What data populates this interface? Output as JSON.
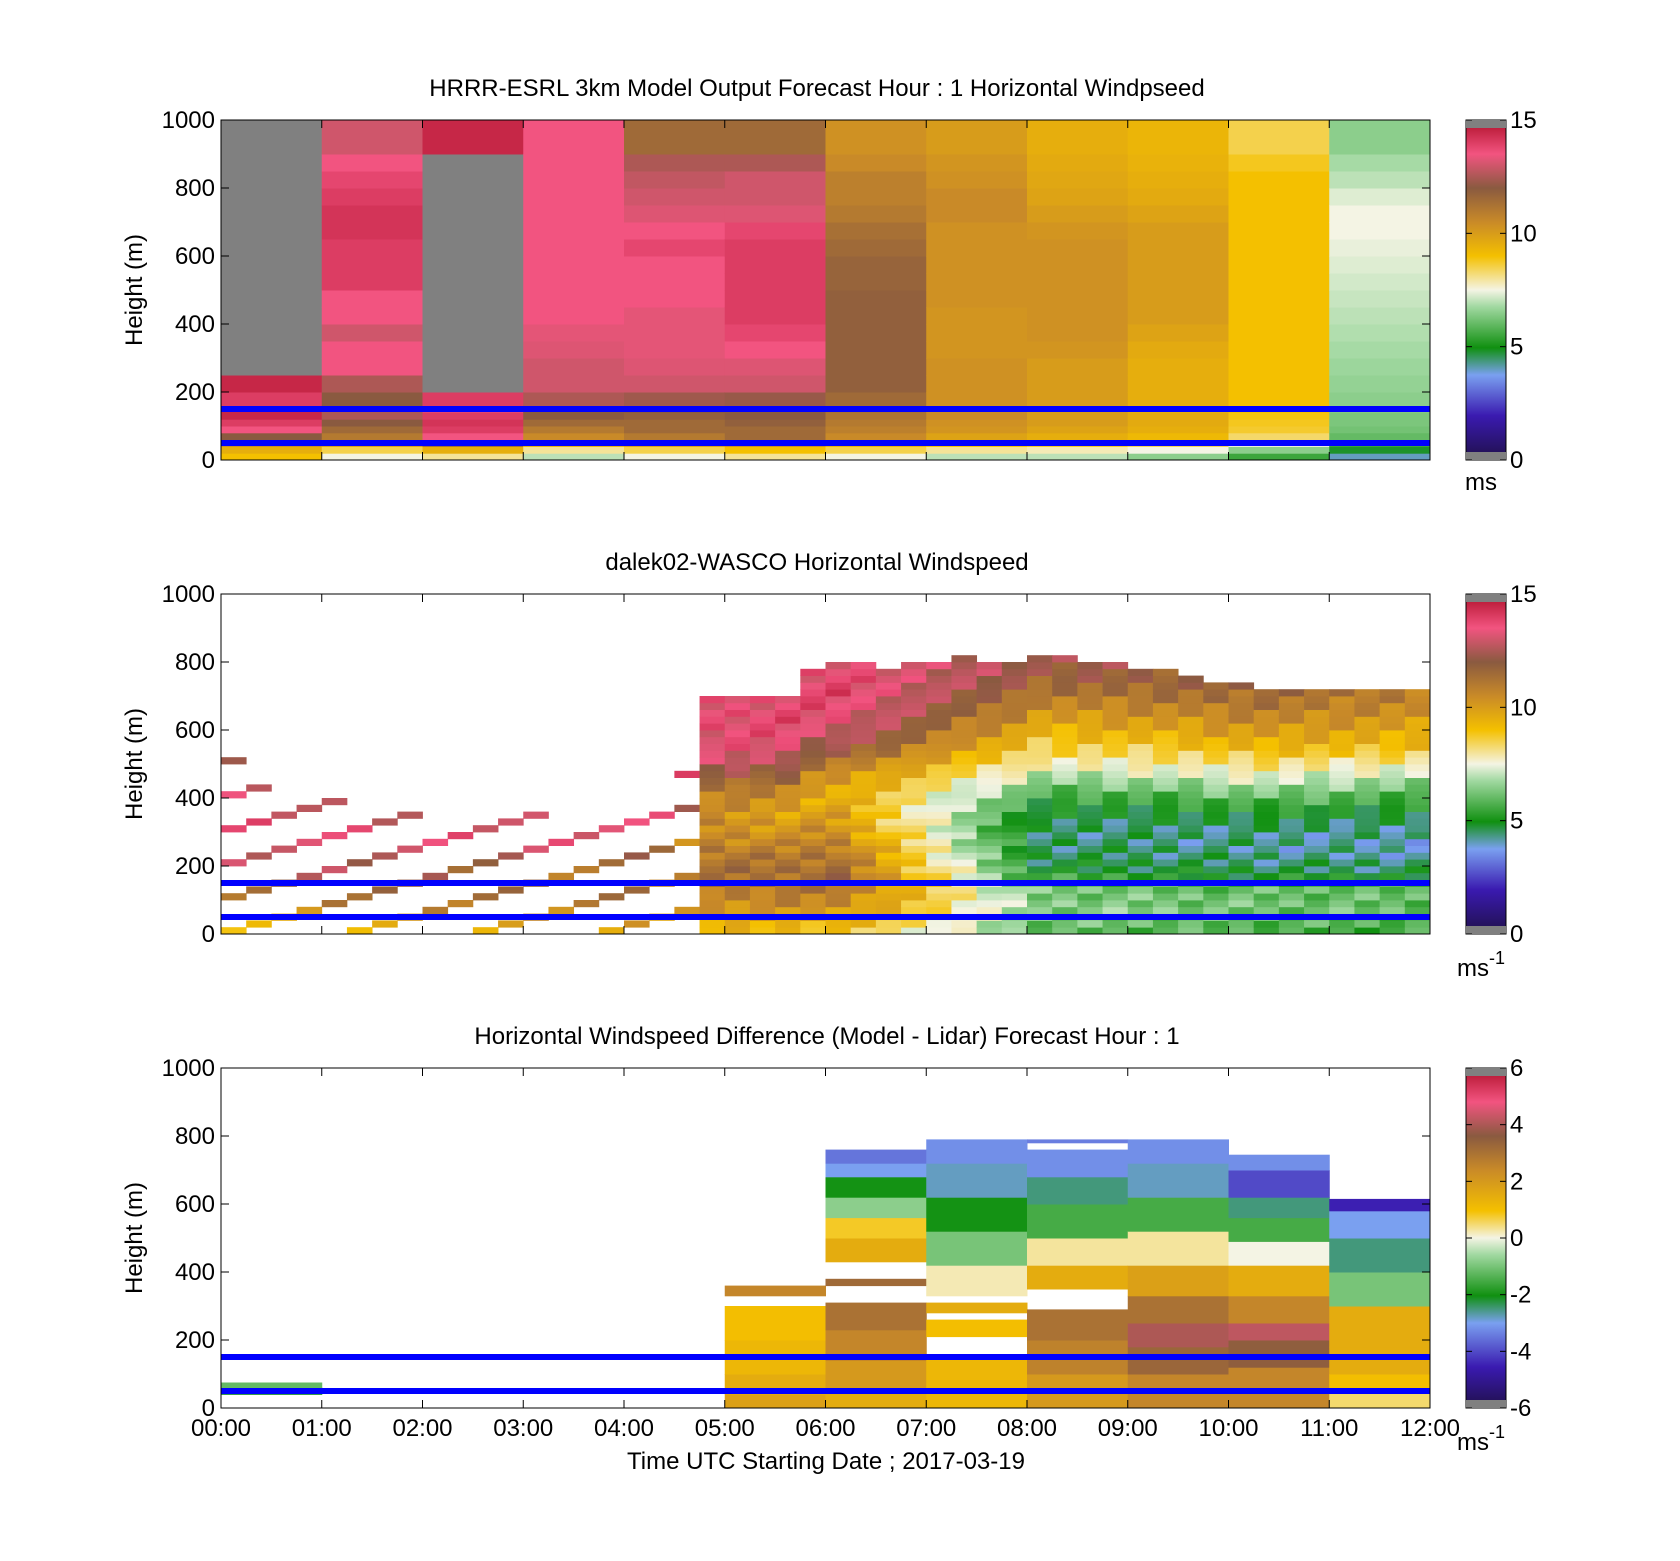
{
  "colors": {
    "reference_line": "#0000ff",
    "missing": "#808080"
  },
  "charts": [
    {
      "type": "heatmap",
      "title": "HRRR-ESRL 3km Model Output   Forecast Hour : 1 Horizontal Windpseed",
      "ylabel": "Height (m)",
      "xlim": [
        0,
        12
      ],
      "ylim": [
        0,
        1000
      ],
      "yticks": [
        "0",
        "200",
        "400",
        "600",
        "800",
        "1000"
      ],
      "colorbar": {
        "ticks": [
          "0",
          "5",
          "10",
          "15"
        ],
        "unit": "ms",
        "unit_sup": "",
        "clim": [
          0,
          15
        ]
      },
      "reference_heights": [
        50,
        150
      ],
      "x_interval_hours": 1,
      "height_bins": [
        0,
        20,
        40,
        60,
        80,
        100,
        120,
        140,
        160,
        200,
        250,
        300,
        350,
        400,
        450,
        500,
        550,
        600,
        650,
        700,
        750,
        800,
        850,
        900,
        1000
      ],
      "speed_columns": [
        [
          9.0,
          9.5,
          10.5,
          12.0,
          13.5,
          14.0,
          14.5,
          14.5,
          14.0,
          14.5,
          null,
          null,
          null,
          null,
          null,
          null,
          null,
          null,
          null,
          null,
          null,
          null,
          null,
          null
        ],
        [
          7.5,
          8.5,
          10.0,
          11.0,
          11.5,
          12.0,
          12.5,
          12.5,
          12.0,
          12.5,
          13.5,
          13.5,
          13.0,
          13.5,
          13.5,
          14.0,
          14.0,
          14.0,
          14.2,
          14.2,
          14.0,
          13.8,
          13.5,
          13.0
        ],
        [
          8.0,
          9.5,
          11.5,
          13.5,
          14.0,
          14.2,
          14.0,
          13.8,
          14.0,
          null,
          null,
          null,
          null,
          null,
          null,
          null,
          null,
          null,
          null,
          null,
          null,
          null,
          null,
          14.5
        ],
        [
          7.0,
          8.0,
          9.5,
          10.5,
          11.0,
          11.5,
          12.0,
          12.0,
          12.5,
          13.0,
          13.0,
          13.2,
          13.3,
          13.5,
          13.5,
          13.5,
          13.5,
          13.5,
          13.5,
          13.5,
          13.5,
          13.5,
          13.5,
          13.5
        ],
        [
          7.5,
          8.5,
          10.0,
          11.0,
          11.5,
          11.5,
          11.8,
          12.0,
          12.3,
          13.0,
          13.2,
          13.3,
          13.3,
          13.3,
          13.5,
          13.5,
          13.5,
          13.8,
          13.5,
          13.2,
          13.0,
          12.8,
          12.5,
          11.5
        ],
        [
          8.0,
          9.0,
          10.5,
          11.5,
          11.5,
          11.8,
          12.0,
          12.0,
          12.2,
          13.0,
          13.2,
          13.5,
          13.8,
          14.0,
          14.0,
          14.0,
          14.0,
          14.0,
          13.8,
          13.2,
          13.0,
          13.0,
          12.5,
          11.5
        ],
        [
          7.5,
          8.5,
          9.5,
          10.5,
          10.8,
          11.0,
          11.2,
          11.3,
          11.5,
          11.8,
          11.8,
          11.8,
          11.8,
          11.8,
          11.8,
          11.7,
          11.7,
          11.5,
          11.3,
          11.0,
          10.8,
          10.8,
          10.5,
          10.3
        ],
        [
          7.0,
          8.0,
          9.0,
          9.8,
          10.2,
          10.3,
          10.5,
          10.5,
          10.3,
          10.3,
          10.3,
          10.2,
          10.2,
          10.2,
          10.3,
          10.3,
          10.3,
          10.3,
          10.3,
          10.5,
          10.5,
          10.3,
          10.2,
          10.0
        ],
        [
          7.0,
          7.8,
          8.8,
          9.5,
          9.8,
          10.0,
          10.0,
          10.0,
          10.0,
          10.0,
          10.0,
          10.2,
          10.3,
          10.3,
          10.3,
          10.3,
          10.3,
          10.3,
          10.2,
          10.0,
          9.8,
          9.7,
          9.6,
          9.5
        ],
        [
          6.5,
          7.5,
          8.5,
          9.2,
          9.5,
          9.6,
          9.6,
          9.5,
          9.5,
          9.5,
          9.5,
          9.6,
          9.8,
          10.0,
          10.0,
          10.0,
          10.0,
          10.0,
          10.0,
          9.8,
          9.6,
          9.5,
          9.4,
          9.3
        ],
        [
          5.5,
          6.5,
          7.5,
          8.3,
          8.7,
          8.8,
          8.9,
          9.0,
          9.0,
          9.0,
          9.0,
          9.0,
          9.0,
          9.0,
          9.0,
          9.0,
          9.0,
          9.0,
          9.0,
          9.0,
          9.0,
          9.0,
          8.8,
          8.5
        ],
        [
          4.0,
          4.8,
          5.5,
          6.0,
          6.2,
          6.3,
          6.3,
          6.4,
          6.5,
          6.6,
          6.7,
          6.8,
          6.9,
          7.0,
          7.1,
          7.2,
          7.3,
          7.4,
          7.5,
          7.5,
          7.3,
          7.0,
          6.8,
          6.5
        ]
      ]
    },
    {
      "type": "heatmap",
      "title": "dalek02-WASCO  Horizontal Windspeed",
      "ylabel": "Height (m)",
      "xlim": [
        0,
        12
      ],
      "ylim": [
        0,
        1000
      ],
      "yticks": [
        "0",
        "200",
        "400",
        "600",
        "800",
        "1000"
      ],
      "colorbar": {
        "ticks": [
          "0",
          "5",
          "10",
          "15"
        ],
        "unit": "ms",
        "unit_sup": "-1",
        "clim": [
          0,
          15
        ]
      },
      "reference_heights": [
        50,
        150
      ],
      "x_interval_hours": 0.25,
      "top_heights": [
        520,
        430,
        430,
        400,
        400,
        360,
        360,
        360,
        350,
        350,
        350,
        350,
        350,
        350,
        350,
        350,
        350,
        440,
        500,
        700,
        690,
        700,
        700,
        780,
        790,
        790,
        780,
        790,
        800,
        810,
        800,
        800,
        820,
        810,
        800,
        790,
        780,
        770,
        760,
        740,
        730,
        720,
        720,
        720,
        720,
        720,
        720,
        720
      ],
      "height_profile_anchors": [
        [
          0,
          [
            9.5,
            9.5,
            12.0,
            13.0,
            13.5,
            13.5,
            13.0,
            12.0
          ]
        ],
        [
          24,
          [
            9.0,
            10.5,
            11.5,
            11.0,
            10.0,
            9.5,
            10.5,
            12.5,
            13.5,
            13.8,
            13.5
          ]
        ],
        [
          32,
          [
            6.0,
            6.5,
            6.2,
            4.8,
            4.5,
            4.5,
            5.2,
            6.5,
            8.0,
            9.0,
            10.0,
            11.0,
            12.0,
            12.5
          ]
        ],
        [
          47,
          [
            5.5,
            6.0,
            6.0,
            4.5,
            4.0,
            4.2,
            5.0,
            6.2,
            7.5,
            9.0,
            9.8,
            10.5,
            11.0
          ]
        ]
      ]
    },
    {
      "type": "heatmap",
      "title": "Horizontal Windspeed Difference (Model - Lidar) Forecast Hour : 1",
      "xlabel": "Time UTC  Starting Date ; 2017-03-19",
      "ylabel": "Height (m)",
      "xlim": [
        0,
        12
      ],
      "ylim": [
        0,
        1000
      ],
      "xticks": [
        "00:00",
        "01:00",
        "02:00",
        "03:00",
        "04:00",
        "05:00",
        "06:00",
        "07:00",
        "08:00",
        "09:00",
        "10:00",
        "11:00",
        "12:00"
      ],
      "yticks": [
        "0",
        "200",
        "400",
        "600",
        "800",
        "1000"
      ],
      "colorbar": {
        "ticks": [
          "-6",
          "-4",
          "-2",
          "0",
          "2",
          "4",
          "6"
        ],
        "unit": "ms",
        "unit_sup": "-1",
        "clim": [
          -6,
          6
        ]
      },
      "reference_heights": [
        50,
        150
      ],
      "x_interval_hours": 1,
      "difference_columns": [
        {
          "hour": 0,
          "segments": [
            [
              40,
              60,
              -2.2
            ],
            [
              60,
              75,
              -1.2
            ]
          ]
        },
        {
          "hour": 5,
          "segments": [
            [
              0,
              40,
              1.8
            ],
            [
              40,
              100,
              1.5
            ],
            [
              100,
              200,
              1.2
            ],
            [
              200,
              300,
              1.0
            ],
            [
              330,
              360,
              2.5
            ]
          ]
        },
        {
          "hour": 6,
          "segments": [
            [
              0,
              60,
              1.5
            ],
            [
              60,
              140,
              2.0
            ],
            [
              140,
              230,
              2.5
            ],
            [
              230,
              310,
              3.0
            ],
            [
              360,
              380,
              3.2
            ],
            [
              430,
              500,
              1.5
            ],
            [
              500,
              560,
              0.8
            ],
            [
              560,
              620,
              -0.8
            ],
            [
              620,
              680,
              -2.0
            ],
            [
              680,
              720,
              -3.0
            ],
            [
              720,
              760,
              -3.5
            ]
          ]
        },
        {
          "hour": 7,
          "segments": [
            [
              0,
              60,
              1.2
            ],
            [
              60,
              150,
              1.2
            ],
            [
              210,
              260,
              1.0
            ],
            [
              280,
              310,
              1.5
            ],
            [
              330,
              420,
              0.2
            ],
            [
              420,
              520,
              -1.0
            ],
            [
              520,
              620,
              -2.0
            ],
            [
              620,
              720,
              -2.8
            ],
            [
              720,
              790,
              -3.2
            ]
          ]
        },
        {
          "hour": 8,
          "segments": [
            [
              0,
              100,
              2.0
            ],
            [
              100,
              200,
              2.6
            ],
            [
              200,
              290,
              3.0
            ],
            [
              350,
              420,
              1.5
            ],
            [
              420,
              500,
              0.3
            ],
            [
              500,
              600,
              -1.5
            ],
            [
              600,
              680,
              -2.5
            ],
            [
              680,
              760,
              -3.2
            ],
            [
              780,
              790,
              -3.4
            ]
          ]
        },
        {
          "hour": 9,
          "segments": [
            [
              0,
              100,
              2.5
            ],
            [
              100,
              180,
              3.3
            ],
            [
              180,
              250,
              4.0
            ],
            [
              250,
              330,
              3.0
            ],
            [
              330,
              420,
              1.8
            ],
            [
              420,
              520,
              0.3
            ],
            [
              520,
              620,
              -1.5
            ],
            [
              620,
              720,
              -2.8
            ],
            [
              720,
              790,
              -3.2
            ]
          ]
        },
        {
          "hour": 10,
          "segments": [
            [
              0,
              120,
              2.5
            ],
            [
              120,
              200,
              3.5
            ],
            [
              200,
              250,
              4.2
            ],
            [
              250,
              330,
              2.5
            ],
            [
              330,
              420,
              1.5
            ],
            [
              420,
              490,
              0.0
            ],
            [
              490,
              560,
              -1.5
            ],
            [
              560,
              620,
              -2.5
            ],
            [
              620,
              700,
              -4.0
            ],
            [
              700,
              745,
              -3.2
            ]
          ]
        },
        {
          "hour": 11,
          "segments": [
            [
              0,
              50,
              0.5
            ],
            [
              50,
              100,
              1.0
            ],
            [
              100,
              180,
              1.5
            ],
            [
              180,
              300,
              1.5
            ],
            [
              300,
              400,
              -1.0
            ],
            [
              400,
              500,
              -2.5
            ],
            [
              500,
              580,
              -3.0
            ],
            [
              580,
              615,
              -4.5
            ]
          ]
        }
      ]
    }
  ]
}
